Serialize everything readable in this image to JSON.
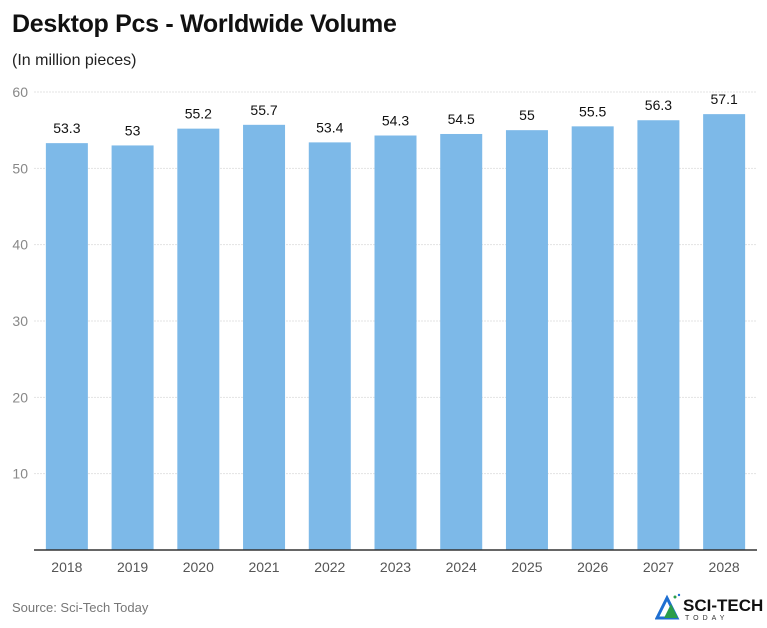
{
  "chart_data": {
    "type": "bar",
    "title": "Desktop Pcs - Worldwide Volume",
    "subtitle": "(In million pieces)",
    "categories": [
      "2018",
      "2019",
      "2020",
      "2021",
      "2022",
      "2023",
      "2024",
      "2025",
      "2026",
      "2027",
      "2028"
    ],
    "values": [
      53.3,
      53,
      55.2,
      55.7,
      53.4,
      54.3,
      54.5,
      55,
      55.5,
      56.3,
      57.1
    ],
    "ylim": [
      0,
      60
    ],
    "yticks": [
      10,
      20,
      30,
      40,
      50,
      60
    ],
    "grid": true,
    "bar_color": "#7db9e8",
    "xlabel": "",
    "ylabel": ""
  },
  "source": "Source: Sci-Tech Today",
  "logo": {
    "text": "SCI-TECH",
    "subtext": "TODAY"
  }
}
